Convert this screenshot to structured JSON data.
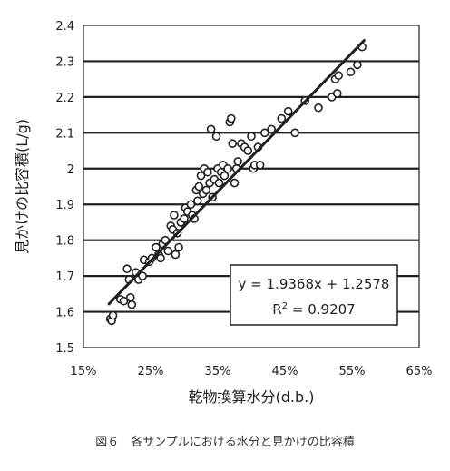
{
  "chart_data": {
    "type": "scatter",
    "xlabel": "乾物換算水分(d.b.)",
    "ylabel": "見かけの比容積(L/g)",
    "xlim": [
      0.15,
      0.65
    ],
    "ylim": [
      1.5,
      2.4
    ],
    "x_tick_labels": [
      "15%",
      "25%",
      "35%",
      "45%",
      "55%",
      "65%"
    ],
    "y_tick_labels": [
      "1.5",
      "1.6",
      "1.7",
      "1.8",
      "1.9",
      "2",
      "2.1",
      "2.2",
      "2.3",
      "2.4"
    ],
    "grid": "horizontal",
    "marker": "open-circle",
    "trendline": {
      "slope": 1.9368,
      "intercept": 1.2578,
      "x_range": [
        0.188,
        0.568
      ]
    },
    "equation_text": "y = 1.9368x + 1.2578",
    "r2_label": "R",
    "r2_exponent": "2",
    "r2_value_text": " = 0.9207",
    "points": [
      [
        0.19,
        1.58
      ],
      [
        0.192,
        1.575
      ],
      [
        0.194,
        1.59
      ],
      [
        0.205,
        1.635
      ],
      [
        0.21,
        1.63
      ],
      [
        0.215,
        1.72
      ],
      [
        0.218,
        1.69
      ],
      [
        0.22,
        1.64
      ],
      [
        0.222,
        1.62
      ],
      [
        0.228,
        1.71
      ],
      [
        0.232,
        1.69
      ],
      [
        0.238,
        1.7
      ],
      [
        0.24,
        1.745
      ],
      [
        0.248,
        1.74
      ],
      [
        0.252,
        1.75
      ],
      [
        0.258,
        1.78
      ],
      [
        0.262,
        1.76
      ],
      [
        0.265,
        1.75
      ],
      [
        0.268,
        1.79
      ],
      [
        0.272,
        1.8
      ],
      [
        0.276,
        1.77
      ],
      [
        0.28,
        1.84
      ],
      [
        0.283,
        1.83
      ],
      [
        0.285,
        1.87
      ],
      [
        0.287,
        1.76
      ],
      [
        0.29,
        1.82
      ],
      [
        0.292,
        1.78
      ],
      [
        0.295,
        1.85
      ],
      [
        0.3,
        1.86
      ],
      [
        0.302,
        1.89
      ],
      [
        0.305,
        1.88
      ],
      [
        0.31,
        1.9
      ],
      [
        0.312,
        1.87
      ],
      [
        0.315,
        1.86
      ],
      [
        0.318,
        1.94
      ],
      [
        0.32,
        1.91
      ],
      [
        0.322,
        1.95
      ],
      [
        0.325,
        1.98
      ],
      [
        0.328,
        1.93
      ],
      [
        0.33,
        2.0
      ],
      [
        0.333,
        1.94
      ],
      [
        0.335,
        1.99
      ],
      [
        0.338,
        1.96
      ],
      [
        0.34,
        2.11
      ],
      [
        0.342,
        1.92
      ],
      [
        0.345,
        1.97
      ],
      [
        0.348,
        2.09
      ],
      [
        0.35,
        2.0
      ],
      [
        0.352,
        1.96
      ],
      [
        0.355,
        1.99
      ],
      [
        0.358,
        2.01
      ],
      [
        0.36,
        1.98
      ],
      [
        0.365,
        2.0
      ],
      [
        0.368,
        2.13
      ],
      [
        0.37,
        2.14
      ],
      [
        0.372,
        2.07
      ],
      [
        0.375,
        1.96
      ],
      [
        0.378,
        2.0
      ],
      [
        0.38,
        2.02
      ],
      [
        0.385,
        2.07
      ],
      [
        0.39,
        2.06
      ],
      [
        0.395,
        2.05
      ],
      [
        0.4,
        2.09
      ],
      [
        0.403,
        2.0
      ],
      [
        0.405,
        2.01
      ],
      [
        0.41,
        2.06
      ],
      [
        0.413,
        2.01
      ],
      [
        0.42,
        2.1
      ],
      [
        0.43,
        2.11
      ],
      [
        0.445,
        2.14
      ],
      [
        0.455,
        2.16
      ],
      [
        0.465,
        2.1
      ],
      [
        0.48,
        2.19
      ],
      [
        0.5,
        2.17
      ],
      [
        0.52,
        2.2
      ],
      [
        0.525,
        2.25
      ],
      [
        0.528,
        2.21
      ],
      [
        0.53,
        2.26
      ],
      [
        0.548,
        2.27
      ],
      [
        0.558,
        2.29
      ],
      [
        0.565,
        2.34
      ]
    ]
  },
  "caption": "図６　各サンプルにおける水分と見かけの比容積"
}
